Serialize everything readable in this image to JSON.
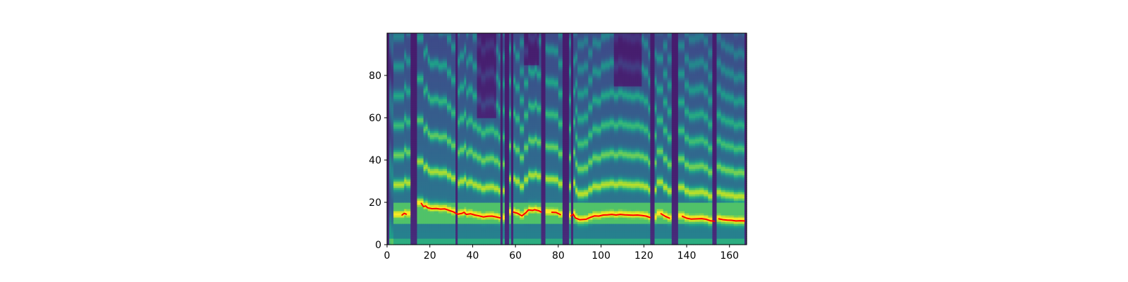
{
  "chart_data": {
    "type": "heatmap",
    "title": "",
    "xlabel": "",
    "ylabel": "",
    "xlim": [
      0,
      168
    ],
    "ylim": [
      0,
      100
    ],
    "x_ticks": [
      0,
      20,
      40,
      60,
      80,
      100,
      120,
      140,
      160
    ],
    "y_ticks": [
      0,
      20,
      40,
      60,
      80
    ],
    "grid": false,
    "colormap": "viridis",
    "heatmap": {
      "n_frames": 168,
      "n_bins": 100,
      "silent_frames": [
        [
          0,
          1
        ],
        [
          11,
          14
        ],
        [
          32,
          33
        ],
        [
          53,
          54
        ],
        [
          55,
          57
        ],
        [
          58,
          59
        ],
        [
          72,
          74
        ],
        [
          82,
          85
        ],
        [
          86,
          87
        ],
        [
          123,
          125
        ],
        [
          133,
          136
        ],
        [
          152,
          154
        ],
        [
          167,
          168
        ]
      ],
      "dark_regions": [
        {
          "x": [
            42,
            50
          ],
          "y": [
            60,
            100
          ]
        },
        {
          "x": [
            106,
            118
          ],
          "y": [
            75,
            100
          ]
        },
        {
          "x": [
            64,
            70
          ],
          "y": [
            85,
            100
          ]
        }
      ],
      "bright_band_y": [
        10,
        19
      ]
    },
    "series": [
      {
        "name": "",
        "color": "#ff0000",
        "segments": [
          [
            [
              7,
              14
            ],
            [
              8,
              14.8
            ],
            [
              9,
              14.4
            ]
          ],
          [
            [
              16,
              19.5
            ],
            [
              17,
              18
            ],
            [
              18,
              18.3
            ],
            [
              19,
              17.4
            ],
            [
              21,
              17
            ],
            [
              23,
              17.1
            ],
            [
              25,
              16.8
            ],
            [
              27,
              16.9
            ],
            [
              29,
              16.2
            ],
            [
              31,
              15.5
            ],
            [
              33,
              14.4
            ],
            [
              35,
              14.8
            ],
            [
              36,
              15.3
            ],
            [
              37,
              14.3
            ],
            [
              39,
              14.6
            ],
            [
              41,
              14
            ],
            [
              43,
              13.6
            ],
            [
              45,
              13.1
            ],
            [
              47,
              13.4
            ],
            [
              49,
              13.5
            ],
            [
              51,
              13.1
            ],
            [
              53,
              12.6
            ]
          ],
          [
            [
              59,
              15.4
            ],
            [
              61,
              14.8
            ],
            [
              63,
              13.6
            ],
            [
              65,
              15.2
            ],
            [
              66,
              16.4
            ],
            [
              68,
              16.2
            ],
            [
              69,
              16.5
            ],
            [
              71,
              16
            ],
            [
              72,
              15.4
            ]
          ],
          [
            [
              77,
              15.3
            ],
            [
              79,
              15.2
            ],
            [
              81,
              14.2
            ]
          ],
          [
            [
              86,
              13.6
            ],
            [
              87,
              14.4
            ],
            [
              88,
              12.6
            ],
            [
              90,
              11.8
            ],
            [
              93,
              12
            ],
            [
              95,
              12.9
            ],
            [
              97,
              13.6
            ],
            [
              99,
              13.5
            ],
            [
              101,
              14
            ],
            [
              103,
              14.1
            ],
            [
              105,
              14.3
            ],
            [
              107,
              14
            ],
            [
              109,
              14.3
            ],
            [
              111,
              14.1
            ],
            [
              113,
              14
            ],
            [
              115,
              13.9
            ],
            [
              117,
              14
            ],
            [
              119,
              13.8
            ],
            [
              121,
              13.5
            ],
            [
              123,
              12.8
            ]
          ],
          [
            [
              128,
              14.6
            ],
            [
              130,
              13.4
            ],
            [
              132,
              12.5
            ]
          ],
          [
            [
              138,
              13.4
            ],
            [
              140,
              12.5
            ],
            [
              142,
              12.1
            ],
            [
              145,
              12.2
            ],
            [
              147,
              12.3
            ],
            [
              149,
              12
            ],
            [
              151,
              11.3
            ],
            [
              153,
              11.1
            ]
          ],
          [
            [
              155,
              12.2
            ],
            [
              157,
              11.8
            ],
            [
              159,
              11.6
            ],
            [
              161,
              11.5
            ],
            [
              163,
              11.2
            ],
            [
              165,
              11.3
            ],
            [
              167,
              11.2
            ]
          ]
        ]
      }
    ]
  }
}
